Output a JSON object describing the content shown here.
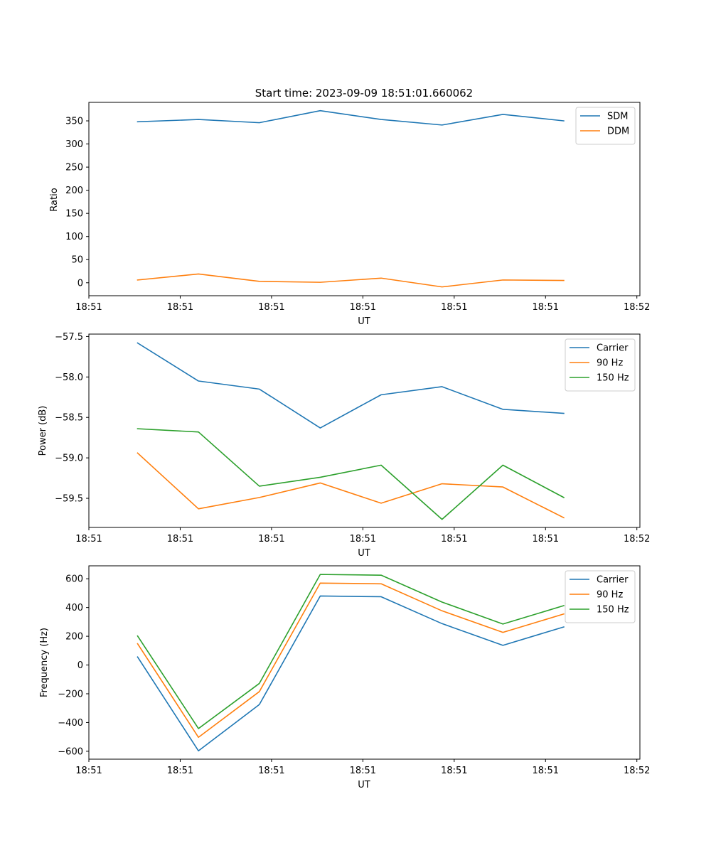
{
  "figure": {
    "title": "Start time: 2023-09-09 18:51:01.660062"
  },
  "chart_data": [
    {
      "type": "line",
      "title": "Start time: 2023-09-09 18:51:01.660062",
      "xlabel": "UT",
      "ylabel": "Ratio",
      "x": [
        1,
        2,
        3,
        4,
        5,
        6,
        7,
        8
      ],
      "xlim": [
        0.2,
        9.25
      ],
      "x_ticks": [
        0.2,
        1.7,
        3.2,
        4.7,
        6.2,
        7.7,
        9.2
      ],
      "x_tick_labels": [
        "18:51",
        "18:51",
        "18:51",
        "18:51",
        "18:51",
        "18:51",
        "18:52"
      ],
      "ylim": [
        -28,
        390
      ],
      "y_ticks": [
        0,
        50,
        100,
        150,
        200,
        250,
        300,
        350
      ],
      "y_tick_labels": [
        "0",
        "50",
        "100",
        "150",
        "200",
        "250",
        "300",
        "350"
      ],
      "legend_position": "top-right",
      "series": [
        {
          "name": "SDM",
          "color": "#1f77b4",
          "values": [
            348,
            353,
            346,
            372,
            353,
            341,
            364,
            350
          ]
        },
        {
          "name": "DDM",
          "color": "#ff7f0e",
          "values": [
            6,
            19,
            3,
            1,
            10,
            -9,
            6,
            5
          ]
        }
      ]
    },
    {
      "type": "line",
      "title": "",
      "xlabel": "UT",
      "ylabel": "Power (dB)",
      "x": [
        1,
        2,
        3,
        4,
        5,
        6,
        7,
        8
      ],
      "xlim": [
        0.2,
        9.25
      ],
      "x_ticks": [
        0.2,
        1.7,
        3.2,
        4.7,
        6.2,
        7.7,
        9.2
      ],
      "x_tick_labels": [
        "18:51",
        "18:51",
        "18:51",
        "18:51",
        "18:51",
        "18:51",
        "18:52"
      ],
      "ylim": [
        -59.86,
        -57.47
      ],
      "y_ticks": [
        -59.5,
        -59.0,
        -58.5,
        -58.0,
        -57.5
      ],
      "y_tick_labels": [
        "−59.5",
        "−59.0",
        "−58.5",
        "−58.0",
        "−57.5"
      ],
      "legend_position": "top-right",
      "series": [
        {
          "name": "Carrier",
          "color": "#1f77b4",
          "values": [
            -57.58,
            -58.05,
            -58.15,
            -58.63,
            -58.22,
            -58.12,
            -58.4,
            -58.45
          ]
        },
        {
          "name": "90 Hz",
          "color": "#ff7f0e",
          "values": [
            -58.94,
            -59.63,
            -59.49,
            -59.31,
            -59.56,
            -59.32,
            -59.36,
            -59.74
          ]
        },
        {
          "name": "150 Hz",
          "color": "#2ca02c",
          "values": [
            -58.64,
            -58.68,
            -59.35,
            -59.24,
            -59.09,
            -59.76,
            -59.09,
            -59.49
          ]
        }
      ]
    },
    {
      "type": "line",
      "title": "",
      "xlabel": "UT",
      "ylabel": "Frequency (Hz)",
      "x": [
        1,
        2,
        3,
        4,
        5,
        6,
        7,
        8
      ],
      "xlim": [
        0.2,
        9.25
      ],
      "x_ticks": [
        0.2,
        1.7,
        3.2,
        4.7,
        6.2,
        7.7,
        9.2
      ],
      "x_tick_labels": [
        "18:51",
        "18:51",
        "18:51",
        "18:51",
        "18:51",
        "18:51",
        "18:52"
      ],
      "ylim": [
        -655,
        690
      ],
      "y_ticks": [
        -600,
        -400,
        -200,
        0,
        200,
        400,
        600
      ],
      "y_tick_labels": [
        "−600",
        "−400",
        "−200",
        "0",
        "200",
        "400",
        "600"
      ],
      "legend_position": "top-right",
      "series": [
        {
          "name": "Carrier",
          "color": "#1f77b4",
          "values": [
            56,
            -597,
            -275,
            480,
            475,
            288,
            137,
            265
          ]
        },
        {
          "name": "90 Hz",
          "color": "#ff7f0e",
          "values": [
            148,
            -503,
            -185,
            570,
            565,
            377,
            227,
            355
          ]
        },
        {
          "name": "150 Hz",
          "color": "#2ca02c",
          "values": [
            202,
            -442,
            -128,
            630,
            625,
            438,
            285,
            413
          ]
        }
      ]
    }
  ]
}
